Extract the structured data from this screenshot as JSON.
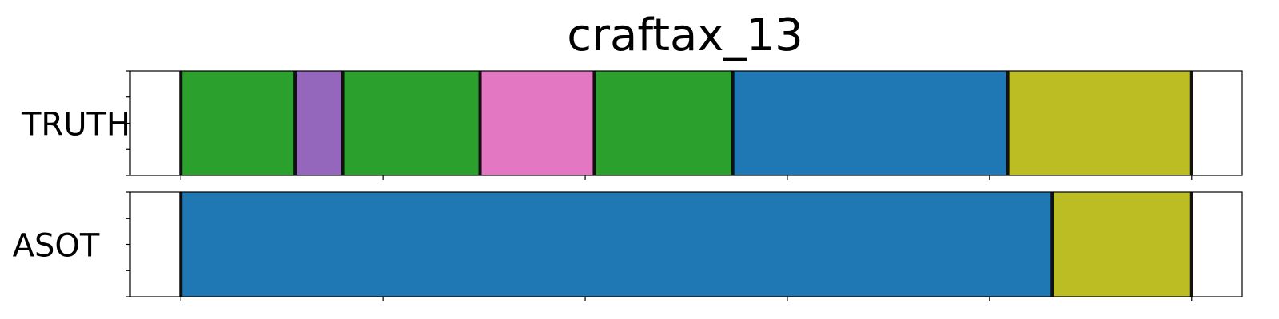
{
  "chart_data": {
    "type": "segmentation",
    "title": "craftax_13",
    "xlim": [
      -50,
      1050
    ],
    "x_ticks": [
      0,
      200,
      400,
      600,
      800,
      1000
    ],
    "rows": [
      {
        "label": "TRUTH",
        "segments": [
          {
            "start": 0,
            "end": 113,
            "color": "#2ca02c"
          },
          {
            "start": 113,
            "end": 160,
            "color": "#9467bd"
          },
          {
            "start": 160,
            "end": 296,
            "color": "#2ca02c"
          },
          {
            "start": 296,
            "end": 409,
            "color": "#e377c2"
          },
          {
            "start": 409,
            "end": 546,
            "color": "#2ca02c"
          },
          {
            "start": 546,
            "end": 818,
            "color": "#1f77b4"
          },
          {
            "start": 818,
            "end": 1000,
            "color": "#bcbd22"
          }
        ]
      },
      {
        "label": "ASOT",
        "segments": [
          {
            "start": 0,
            "end": 862,
            "color": "#1f77b4"
          },
          {
            "start": 862,
            "end": 1000,
            "color": "#bcbd22"
          }
        ]
      }
    ]
  }
}
